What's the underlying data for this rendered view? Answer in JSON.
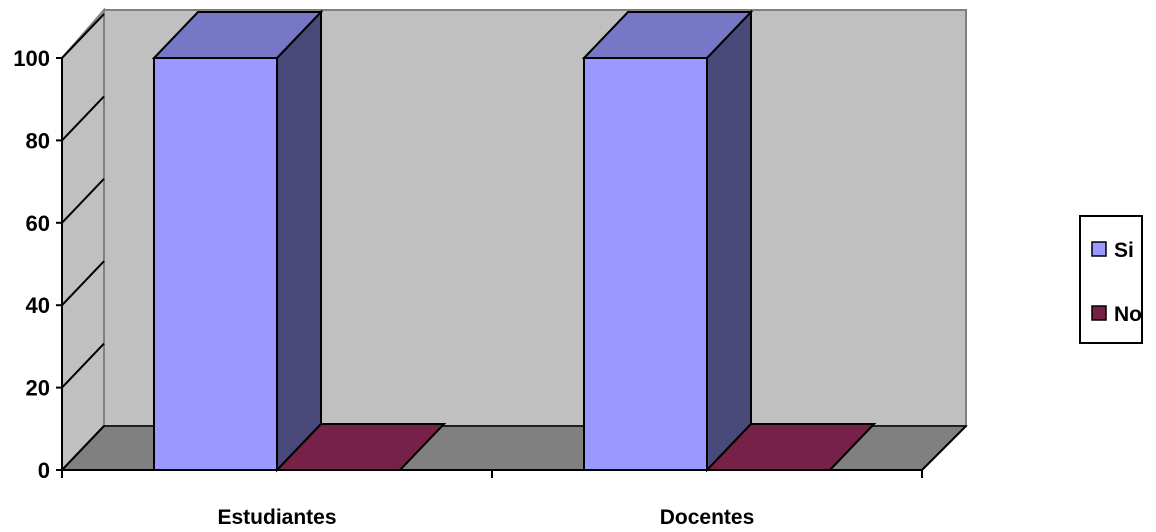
{
  "chart_data": {
    "type": "bar",
    "categories": [
      "Estudiantes",
      "Docentes"
    ],
    "series": [
      {
        "name": "Si",
        "values": [
          100,
          100
        ],
        "color": "#9999ff"
      },
      {
        "name": "No",
        "values": [
          0,
          0
        ],
        "color": "#772048"
      }
    ],
    "ylim": [
      0,
      100
    ],
    "yticks": [
      0,
      20,
      40,
      60,
      80,
      100
    ],
    "grid": false,
    "legend_position": "right",
    "style": "3d-column",
    "colors": {
      "back_wall": "#c0c0c0",
      "floor": "#808080"
    }
  }
}
